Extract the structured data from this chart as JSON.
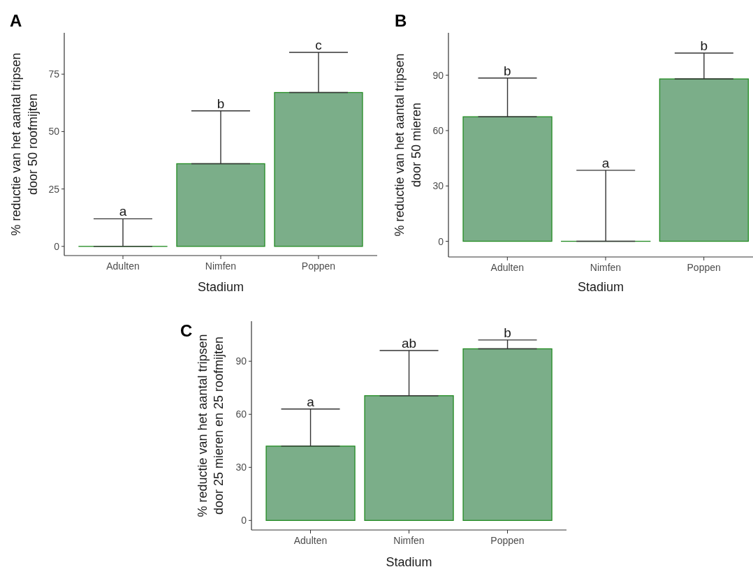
{
  "chart_data": [
    {
      "type": "bar",
      "title": "A",
      "categories": [
        "Adulten",
        "Nimfen",
        "Poppen"
      ],
      "values": [
        0,
        36,
        67
      ],
      "errors": [
        [
          0,
          12
        ],
        [
          36,
          59
        ],
        [
          67,
          84.5
        ]
      ],
      "color": "#7bae89",
      "xlabel": "Stadium",
      "ylabel": "% reductie van het aantal tripsen\ndoor 50 roofmijten",
      "ylim": [
        -4,
        93
      ],
      "yticks": [
        0,
        25,
        50,
        75
      ],
      "annotations": [
        {
          "text": "a",
          "x": "Adulten",
          "y": 12
        },
        {
          "text": "b",
          "x": "Nimfen",
          "y": 59
        },
        {
          "text": "c",
          "x": "Poppen",
          "y": 84.5
        }
      ]
    },
    {
      "type": "bar",
      "title": "B",
      "categories": [
        "Adulten",
        "Nimfen",
        "Poppen"
      ],
      "values": [
        67.5,
        0,
        88
      ],
      "errors": [
        [
          67.5,
          88.5
        ],
        [
          0,
          38.5
        ],
        [
          88,
          102
        ]
      ],
      "color": "#7bae89",
      "xlabel": "Stadium",
      "ylabel": "% reductie van het aantal tripsen\ndoor 50 mieren",
      "ylim": [
        -8.5,
        113
      ],
      "yticks": [
        0,
        30,
        60,
        90
      ],
      "annotations": [
        {
          "text": "b",
          "x": "Adulten",
          "y": 88.5
        },
        {
          "text": "a",
          "x": "Nimfen",
          "y": 38.5
        },
        {
          "text": "b",
          "x": "Poppen",
          "y": 102
        }
      ]
    },
    {
      "type": "bar",
      "title": "C",
      "categories": [
        "Adulten",
        "Nimfen",
        "Poppen"
      ],
      "values": [
        42,
        70.5,
        97
      ],
      "errors": [
        [
          42,
          63
        ],
        [
          70.5,
          96
        ],
        [
          97,
          102
        ]
      ],
      "color": "#7bae89",
      "xlabel": "Stadium",
      "ylabel": "% reductie van het aantal tripsen\ndoor 25 mieren en 25 roofmijten",
      "ylim": [
        -5.4,
        112.6
      ],
      "yticks": [
        0,
        30,
        60,
        90
      ],
      "annotations": [
        {
          "text": "a",
          "x": "Adulten",
          "y": 63
        },
        {
          "text": "ab",
          "x": "Nimfen",
          "y": 96
        },
        {
          "text": "b",
          "x": "Poppen",
          "y": 102
        }
      ]
    }
  ]
}
